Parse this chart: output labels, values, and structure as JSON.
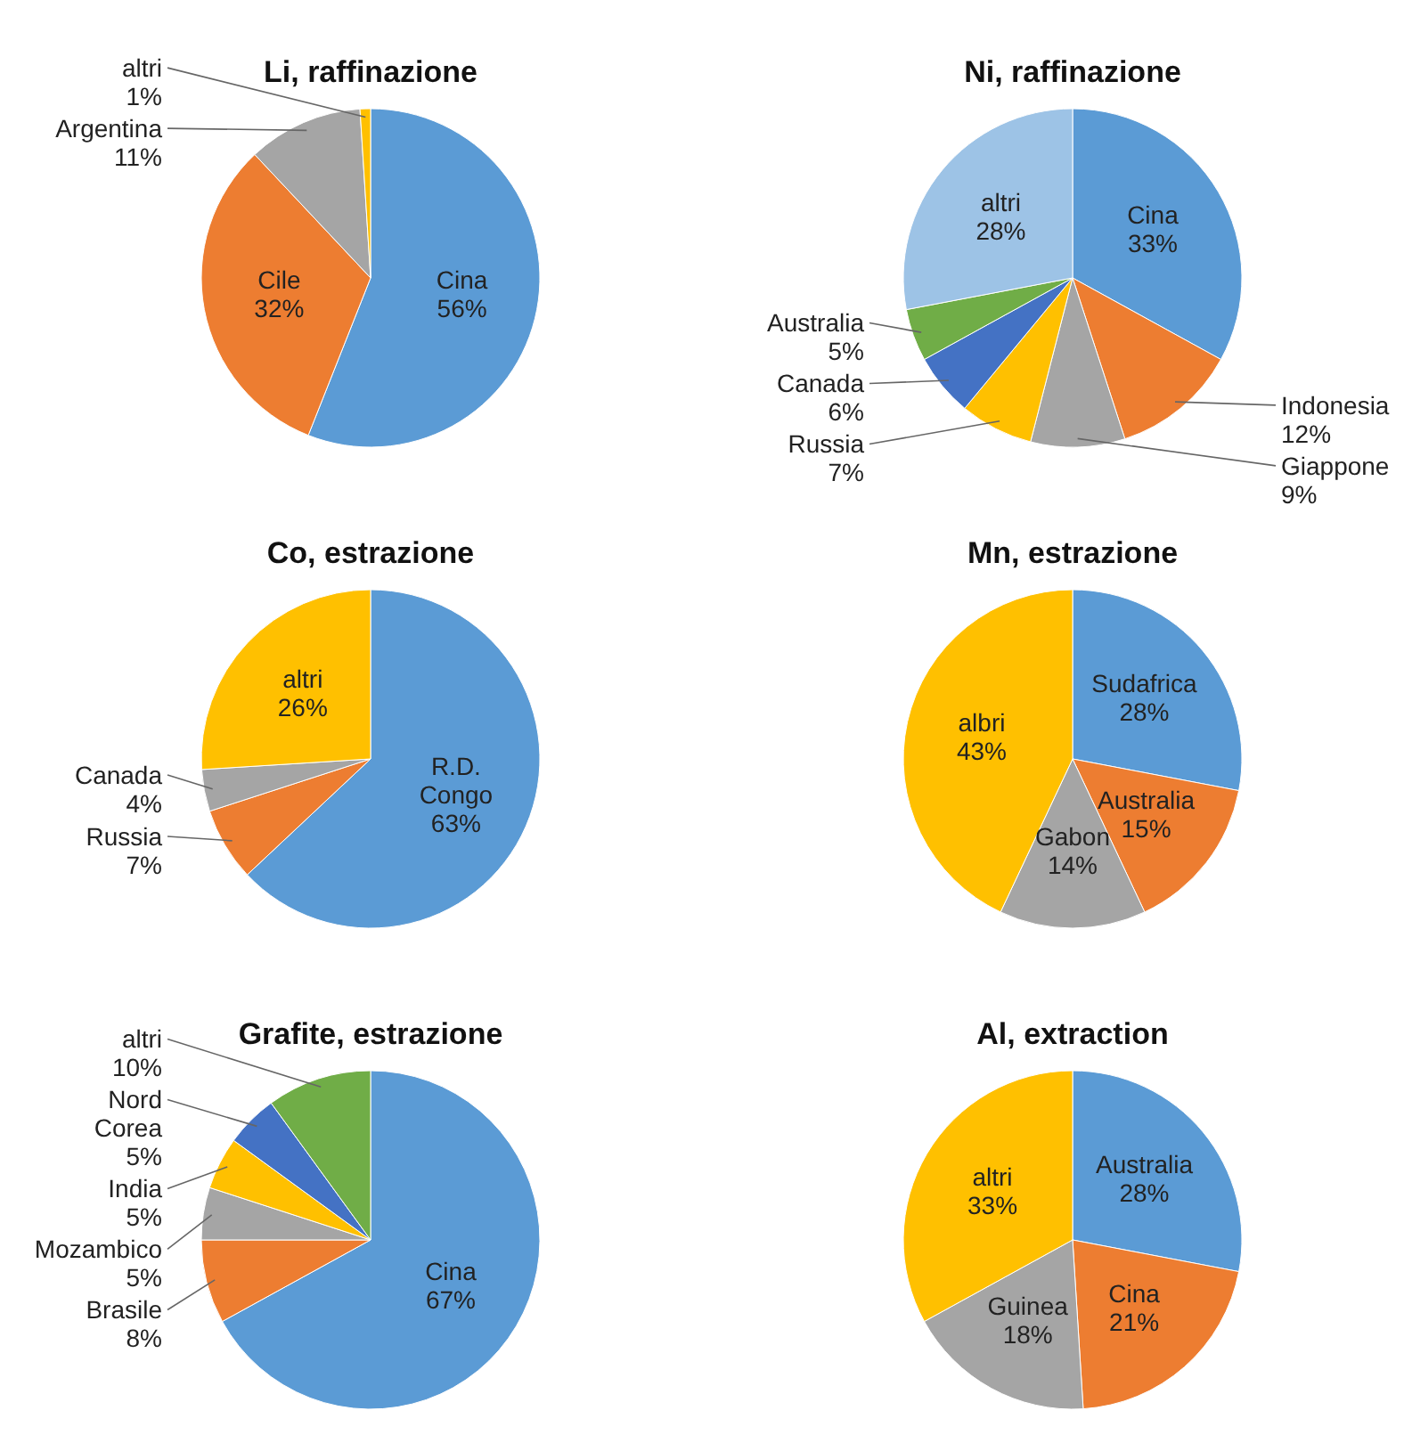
{
  "chart_data": [
    {
      "type": "pie",
      "title": "Li, raffinazione",
      "categories": [
        "Cina",
        "Cile",
        "Argentina",
        "altri"
      ],
      "values": [
        56,
        32,
        11,
        1
      ],
      "value_labels": [
        "56%",
        "32%",
        "11%",
        "1%"
      ],
      "colors": [
        "#5b9bd5",
        "#ed7d31",
        "#a5a5a5",
        "#ffc000"
      ]
    },
    {
      "type": "pie",
      "title": "Ni, raffinazione",
      "categories": [
        "Cina",
        "Indonesia",
        "Giappone",
        "Russia",
        "Canada",
        "Australia",
        "altri"
      ],
      "values": [
        33,
        12,
        9,
        7,
        6,
        5,
        28
      ],
      "value_labels": [
        "33%",
        "12%",
        "9%",
        "7%",
        "6%",
        "5%",
        "28%"
      ],
      "colors": [
        "#5b9bd5",
        "#ed7d31",
        "#a5a5a5",
        "#ffc000",
        "#4472c4",
        "#70ad47",
        "#9dc3e6"
      ]
    },
    {
      "type": "pie",
      "title": "Co, estrazione",
      "categories": [
        "R.D. Congo",
        "Russia",
        "Canada",
        "altri"
      ],
      "values": [
        63,
        7,
        4,
        26
      ],
      "value_labels": [
        "63%",
        "7%",
        "4%",
        "26%"
      ],
      "colors": [
        "#5b9bd5",
        "#ed7d31",
        "#a5a5a5",
        "#ffc000"
      ]
    },
    {
      "type": "pie",
      "title": "Mn, estrazione",
      "categories": [
        "Sudafrica",
        "Australia",
        "Gabon",
        "albri"
      ],
      "values": [
        28,
        15,
        14,
        43
      ],
      "value_labels": [
        "28%",
        "15%",
        "14%",
        "43%"
      ],
      "colors": [
        "#5b9bd5",
        "#ed7d31",
        "#a5a5a5",
        "#ffc000"
      ]
    },
    {
      "type": "pie",
      "title": "Grafite, estrazione",
      "categories": [
        "Cina",
        "Brasile",
        "Mozambico",
        "India",
        "Nord Corea",
        "altri"
      ],
      "values": [
        67,
        8,
        5,
        5,
        5,
        10
      ],
      "value_labels": [
        "67%",
        "8%",
        "5%",
        "5%",
        "5%",
        "10%"
      ],
      "colors": [
        "#5b9bd5",
        "#ed7d31",
        "#a5a5a5",
        "#ffc000",
        "#4472c4",
        "#70ad47"
      ]
    },
    {
      "type": "pie",
      "title": "Al, extraction",
      "categories": [
        "Australia",
        "Cina",
        "Guinea",
        "altri"
      ],
      "values": [
        28,
        21,
        18,
        33
      ],
      "value_labels": [
        "28%",
        "21%",
        "18%",
        "33%"
      ],
      "colors": [
        "#5b9bd5",
        "#ed7d31",
        "#a5a5a5",
        "#ffc000"
      ]
    }
  ]
}
